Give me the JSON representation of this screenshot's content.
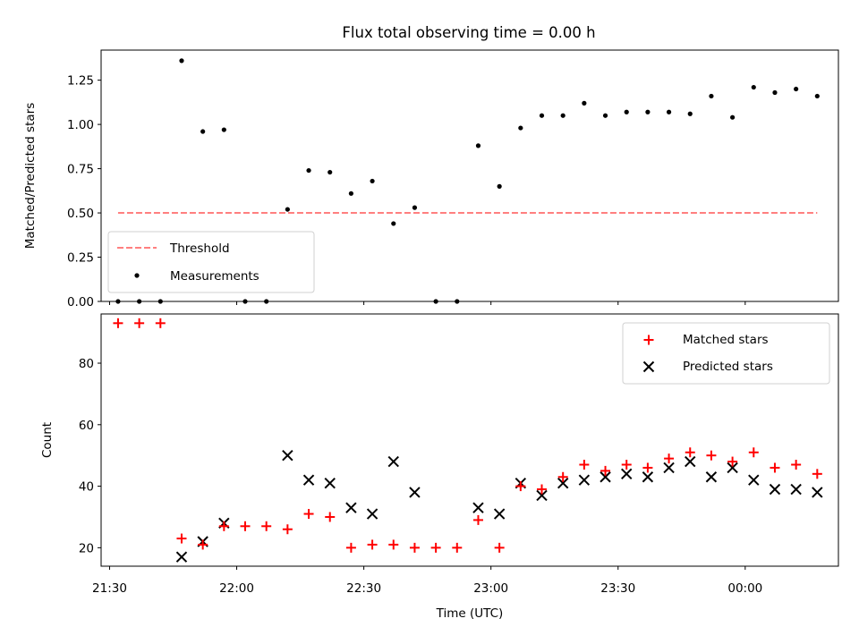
{
  "chart_data": [
    {
      "type": "scatter",
      "panel": "top",
      "title": "Flux total observing time = 0.00 h",
      "xlabel": "",
      "ylabel": "Matched/Predicted stars",
      "ylim": [
        0,
        1.42
      ],
      "yticks": [
        "0.00",
        "0.25",
        "0.50",
        "0.75",
        "1.00",
        "1.25"
      ],
      "legend_position": "lower-left",
      "threshold": {
        "name": "Threshold",
        "value": 0.5,
        "color": "#ff7f7f",
        "x_start": "21:32",
        "x_end": "00:17"
      },
      "series": [
        {
          "name": "Measurements",
          "color": "#000000",
          "x": [
            "21:32",
            "21:37",
            "21:42",
            "21:47",
            "21:52",
            "21:57",
            "22:02",
            "22:07",
            "22:12",
            "22:17",
            "22:22",
            "22:27",
            "22:32",
            "22:37",
            "22:42",
            "22:47",
            "22:52",
            "22:57",
            "23:02",
            "23:07",
            "23:12",
            "23:17",
            "23:22",
            "23:27",
            "23:32",
            "23:37",
            "23:42",
            "23:47",
            "23:52",
            "23:57",
            "00:02",
            "00:07",
            "00:12",
            "00:17"
          ],
          "y": [
            0.0,
            0.0,
            0.0,
            1.36,
            0.96,
            0.97,
            0.0,
            0.0,
            0.52,
            0.74,
            0.73,
            0.61,
            0.68,
            0.44,
            0.53,
            0.0,
            0.0,
            0.88,
            0.65,
            0.98,
            1.05,
            1.05,
            1.12,
            1.05,
            1.07,
            1.07,
            1.07,
            1.06,
            1.16,
            1.04,
            1.21,
            1.18,
            1.2,
            1.16
          ]
        }
      ]
    },
    {
      "type": "scatter",
      "panel": "bottom",
      "xlabel": "Time (UTC)",
      "ylabel": "Count",
      "ylim": [
        14,
        96
      ],
      "yticks": [
        "20",
        "40",
        "60",
        "80"
      ],
      "xticks": [
        "21:30",
        "22:00",
        "22:30",
        "23:00",
        "23:30",
        "00:00"
      ],
      "legend_position": "upper-right",
      "series": [
        {
          "name": "Matched stars",
          "marker": "plus",
          "color": "#ff0000",
          "x": [
            "21:32",
            "21:37",
            "21:42",
            "21:47",
            "21:52",
            "21:57",
            "22:02",
            "22:07",
            "22:12",
            "22:17",
            "22:22",
            "22:27",
            "22:32",
            "22:37",
            "22:42",
            "22:47",
            "22:52",
            "22:57",
            "23:02",
            "23:07",
            "23:12",
            "23:17",
            "23:22",
            "23:27",
            "23:32",
            "23:37",
            "23:42",
            "23:47",
            "23:52",
            "23:57",
            "00:02",
            "00:07",
            "00:12",
            "00:17"
          ],
          "y": [
            93,
            93,
            93,
            23,
            21,
            27,
            27,
            27,
            26,
            31,
            30,
            20,
            21,
            21,
            20,
            20,
            20,
            29,
            20,
            40,
            39,
            43,
            47,
            45,
            47,
            46,
            49,
            51,
            50,
            48,
            51,
            46,
            47,
            44
          ]
        },
        {
          "name": "Predicted stars",
          "marker": "x",
          "color": "#000000",
          "x": [
            "21:47",
            "21:52",
            "21:57",
            "22:12",
            "22:17",
            "22:22",
            "22:27",
            "22:32",
            "22:37",
            "22:42",
            "22:57",
            "23:02",
            "23:07",
            "23:12",
            "23:17",
            "23:22",
            "23:27",
            "23:32",
            "23:37",
            "23:42",
            "23:47",
            "23:52",
            "23:57",
            "00:02",
            "00:07",
            "00:12",
            "00:17"
          ],
          "y": [
            17,
            22,
            28,
            50,
            42,
            41,
            33,
            31,
            48,
            38,
            33,
            31,
            41,
            37,
            41,
            42,
            43,
            44,
            43,
            46,
            48,
            43,
            46,
            42,
            39,
            39,
            38
          ]
        }
      ]
    }
  ]
}
